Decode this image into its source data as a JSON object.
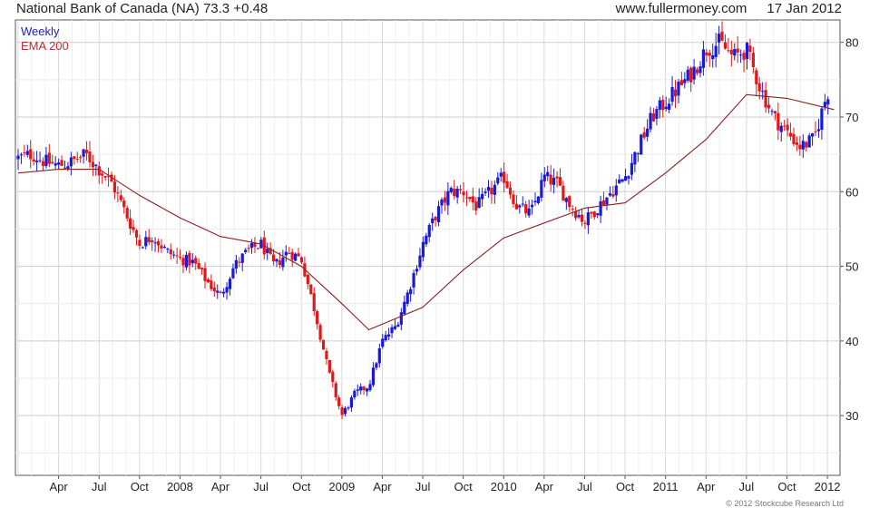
{
  "header": {
    "title": "National Bank of Canada (NA) 73.3 +0.48",
    "website": "www.fullermoney.com",
    "date": "17 Jan 2012"
  },
  "legend": {
    "weekly": "Weekly",
    "ema": "EMA 200"
  },
  "copyright": "© 2012 Stockcube Research Ltd",
  "colors": {
    "up": "#1a1ad6",
    "down": "#e01818",
    "ema": "#8b2020",
    "grid": "#dcdcdc",
    "border": "#555555"
  },
  "chart_data": {
    "type": "line",
    "title": "National Bank of Canada (NA) 73.3 +0.48",
    "ylim": [
      22,
      83
    ],
    "ytick_labels": [
      "30",
      "40",
      "50",
      "60",
      "70",
      "80"
    ],
    "xtick_labels": [
      "Apr",
      "Jul",
      "Oct",
      "2008",
      "Apr",
      "Jul",
      "Oct",
      "2009",
      "Apr",
      "Jul",
      "Oct",
      "2010",
      "Apr",
      "Jul",
      "Oct",
      "2011",
      "Apr",
      "Jul",
      "Oct",
      "2012"
    ],
    "grid": true,
    "y_axis_side": "right",
    "series": [
      {
        "name": "Weekly",
        "x": [
          "Jan 2007",
          "Feb 2007",
          "Mar 2007",
          "Apr 2007",
          "May 2007",
          "Jun 2007",
          "Jul 2007",
          "Aug 2007",
          "Sep 2007",
          "Oct 2007",
          "Nov 2007",
          "Dec 2007",
          "Jan 2008",
          "Feb 2008",
          "Mar 2008",
          "Apr 2008",
          "May 2008",
          "Jun 2008",
          "Jul 2008",
          "Aug 2008",
          "Sep 2008",
          "Oct 2008",
          "Nov 2008",
          "Dec 2008",
          "Jan 2009",
          "Feb 2009",
          "Mar 2009",
          "Apr 2009",
          "May 2009",
          "Jun 2009",
          "Jul 2009",
          "Aug 2009",
          "Sep 2009",
          "Oct 2009",
          "Nov 2009",
          "Dec 2009",
          "Jan 2010",
          "Feb 2010",
          "Mar 2010",
          "Apr 2010",
          "May 2010",
          "Jun 2010",
          "Jul 2010",
          "Aug 2010",
          "Sep 2010",
          "Oct 2010",
          "Nov 2010",
          "Dec 2010",
          "Jan 2011",
          "Feb 2011",
          "Mar 2011",
          "Apr 2011",
          "May 2011",
          "Jun 2011",
          "Jul 2011",
          "Aug 2011",
          "Sep 2011",
          "Oct 2011",
          "Nov 2011",
          "Dec 2011",
          "Jan 2012"
        ],
        "values": [
          64.5,
          65,
          64,
          63.5,
          64,
          65,
          63,
          61,
          57,
          53,
          54,
          52,
          51,
          50.5,
          48,
          46,
          50,
          52,
          53,
          50,
          52,
          51,
          44,
          36,
          30,
          33,
          34,
          40,
          42,
          47,
          53,
          57,
          60,
          60,
          58,
          60,
          62,
          58,
          57,
          62,
          61,
          58,
          56,
          58,
          60,
          62,
          66,
          70,
          72,
          74,
          76,
          79,
          80,
          78,
          79,
          74,
          70,
          68,
          66,
          67,
          73.3
        ]
      },
      {
        "name": "EMA 200",
        "x": [
          "Jan 2007",
          "Apr 2007",
          "Jul 2007",
          "Oct 2007",
          "Jan 2008",
          "Apr 2008",
          "Jul 2008",
          "Oct 2008",
          "Jan 2009",
          "Mar 2009",
          "Jul 2009",
          "Oct 2009",
          "Jan 2010",
          "Apr 2010",
          "Jul 2010",
          "Oct 2010",
          "Jan 2011",
          "Apr 2011",
          "Jul 2011",
          "Oct 2011",
          "Jan 2012"
        ],
        "values": [
          62.5,
          63,
          63,
          59.5,
          56.5,
          54,
          53,
          50,
          45,
          41.5,
          44.5,
          49.5,
          53.8,
          55.8,
          57.8,
          58.5,
          62.5,
          67,
          73,
          72.5,
          71
        ]
      }
    ]
  }
}
